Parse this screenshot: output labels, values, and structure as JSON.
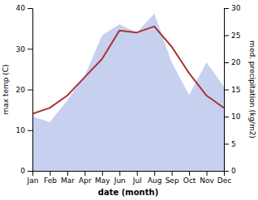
{
  "chart_data": {
    "type": "line",
    "categories": [
      "Jan",
      "Feb",
      "Mar",
      "Apr",
      "May",
      "Jun",
      "Jul",
      "Aug",
      "Sep",
      "Oct",
      "Nov",
      "Dec"
    ],
    "series": [
      {
        "type": "area",
        "color": "#c8d0f0",
        "axis": "y2",
        "values": [
          10.0,
          9.0,
          13.0,
          17.5,
          25.0,
          27.0,
          25.5,
          29.0,
          20.0,
          14.0,
          20.0,
          15.5
        ]
      },
      {
        "type": "line",
        "color": "#aa3333",
        "values": [
          14.0,
          15.5,
          18.5,
          23.0,
          27.5,
          34.5,
          34.0,
          35.5,
          30.5,
          24.0,
          18.5,
          15.5
        ]
      }
    ],
    "x_label": "date (month)",
    "y_label": "max temp (C)",
    "y2_label": "med. precipitation (kg/m2)",
    "ylim": [
      0,
      40
    ],
    "yticks": [
      0,
      10,
      20,
      30,
      40
    ],
    "y2lim": [
      0,
      30
    ],
    "y2ticks": [
      0,
      5,
      10,
      15,
      20,
      25,
      30
    ],
    "grid": false
  }
}
